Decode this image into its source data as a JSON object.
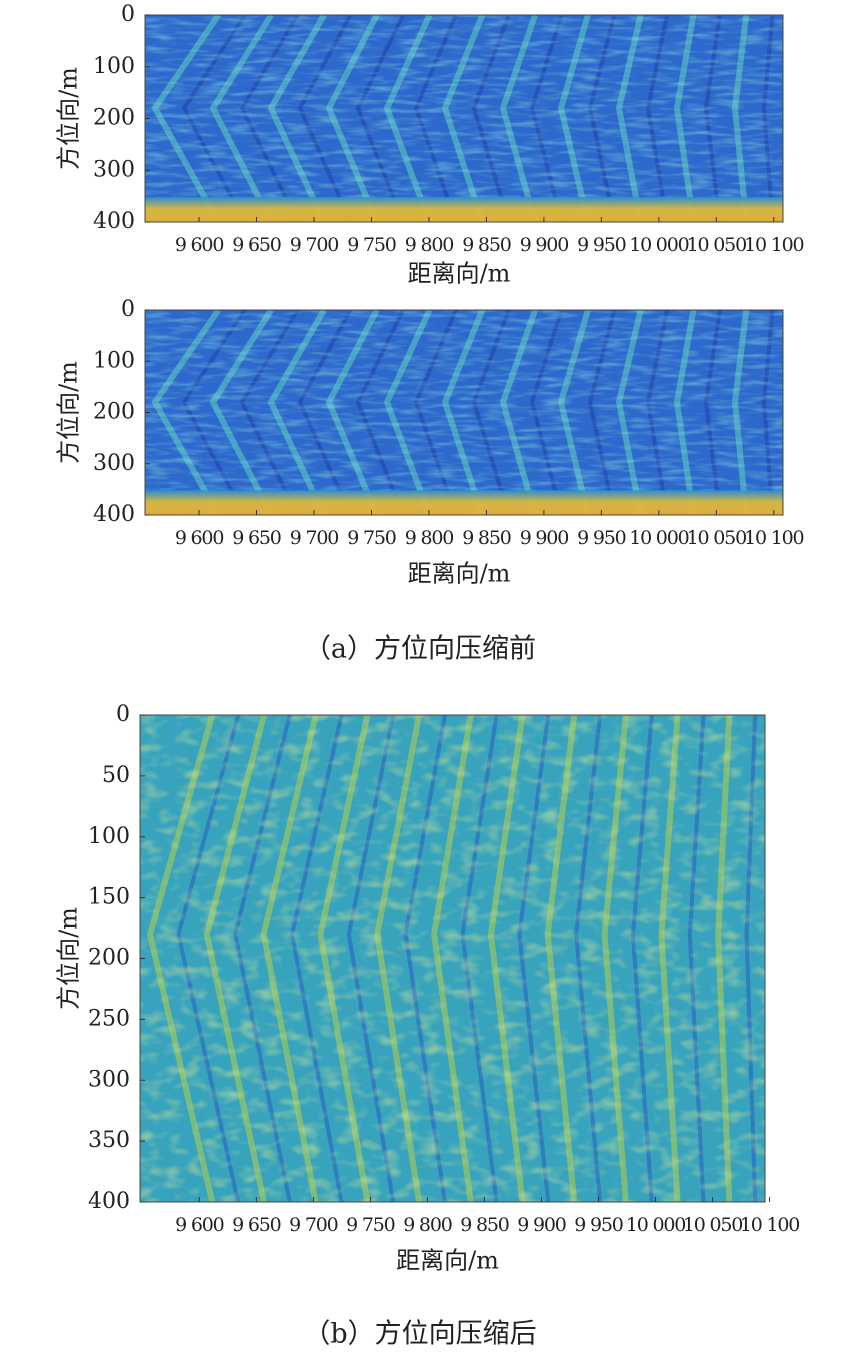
{
  "chart_data": [
    {
      "type": "heatmap",
      "xlabel": "距离向/m",
      "ylabel": "方位向/m",
      "xlim": [
        9553,
        10108
      ],
      "xticks": [
        {
          "value": 9600,
          "label": "9 600"
        },
        {
          "value": 9650,
          "label": "9 650"
        },
        {
          "value": 9700,
          "label": "9 700"
        },
        {
          "value": 9750,
          "label": "9 750"
        },
        {
          "value": 9800,
          "label": "9 800"
        },
        {
          "value": 9850,
          "label": "9 850"
        },
        {
          "value": 9900,
          "label": "9 900"
        },
        {
          "value": 9950,
          "label": "9 950"
        },
        {
          "value": 10000,
          "label": "10 000"
        },
        {
          "value": 10050,
          "label": "10 050"
        },
        {
          "value": 10100,
          "label": "10 100"
        }
      ],
      "ylim": [
        400,
        0
      ],
      "yticks": [
        0,
        100,
        200,
        300,
        400
      ]
    },
    {
      "type": "heatmap",
      "xlabel": "距离向/m",
      "ylabel": "方位向/m",
      "xlim": [
        9553,
        10108
      ],
      "xticks": [
        {
          "value": 9600,
          "label": "9 600"
        },
        {
          "value": 9650,
          "label": "9 650"
        },
        {
          "value": 9700,
          "label": "9 700"
        },
        {
          "value": 9750,
          "label": "9 750"
        },
        {
          "value": 9800,
          "label": "9 800"
        },
        {
          "value": 9850,
          "label": "9 850"
        },
        {
          "value": 9900,
          "label": "9 900"
        },
        {
          "value": 9950,
          "label": "9 950"
        },
        {
          "value": 10000,
          "label": "10 000"
        },
        {
          "value": 10050,
          "label": "10 050"
        },
        {
          "value": 10100,
          "label": "10 100"
        }
      ],
      "ylim": [
        400,
        0
      ],
      "yticks": [
        0,
        100,
        200,
        300,
        400
      ],
      "caption": "（a）方位向压缩前"
    },
    {
      "type": "heatmap",
      "xlabel": "距离向/m",
      "ylabel": "方位向/m",
      "xlim": [
        9548,
        10096
      ],
      "xticks": [
        {
          "value": 9600,
          "label": "9 600"
        },
        {
          "value": 9650,
          "label": "9 650"
        },
        {
          "value": 9700,
          "label": "9 700"
        },
        {
          "value": 9750,
          "label": "9 750"
        },
        {
          "value": 9800,
          "label": "9 800"
        },
        {
          "value": 9850,
          "label": "9 850"
        },
        {
          "value": 9900,
          "label": "9 900"
        },
        {
          "value": 9950,
          "label": "9 950"
        },
        {
          "value": 10000,
          "label": "10 000"
        },
        {
          "value": 10050,
          "label": "10 050"
        },
        {
          "value": 10100,
          "label": "10 100"
        }
      ],
      "ylim": [
        400,
        0
      ],
      "yticks": [
        0,
        50,
        100,
        150,
        200,
        250,
        300,
        350,
        400
      ],
      "caption": "（b）方位向压缩后"
    }
  ]
}
